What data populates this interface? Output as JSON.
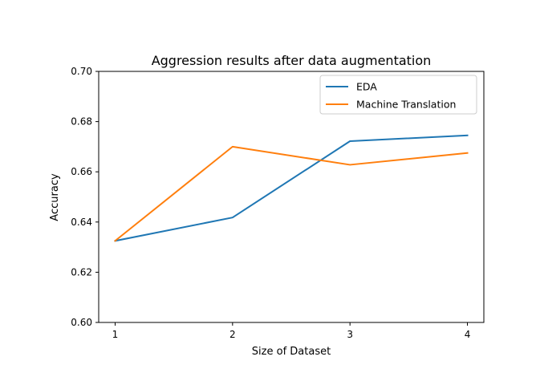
{
  "chart_data": {
    "type": "line",
    "title": "Aggression results after data augmentation",
    "xlabel": "Size of Dataset",
    "ylabel": "Accuracy",
    "x": [
      1,
      2,
      3,
      4
    ],
    "xticks": [
      "1",
      "2",
      "3",
      "4"
    ],
    "yticks": [
      "0.60",
      "0.62",
      "0.64",
      "0.66",
      "0.68",
      "0.70"
    ],
    "ylim": [
      0.6,
      0.7
    ],
    "legend_position": "top-right",
    "grid": false,
    "series": [
      {
        "name": "EDA",
        "color": "#1f77b4",
        "values": [
          0.6325,
          0.6418,
          0.6722,
          0.6745
        ]
      },
      {
        "name": "Machine Translation",
        "color": "#ff7f0e",
        "values": [
          0.6325,
          0.67,
          0.6628,
          0.6675
        ]
      }
    ]
  }
}
